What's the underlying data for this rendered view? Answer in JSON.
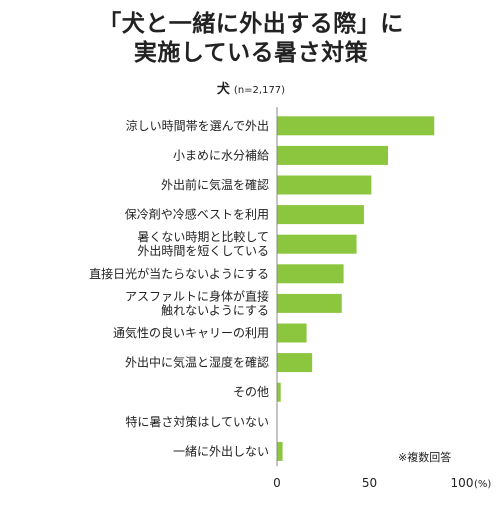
{
  "header": {
    "title_line1": "「犬と一緒に外出する際」に",
    "title_line2": "実施している暑さ対策",
    "subtitle_main": "犬",
    "subtitle_n": "(n=2,177)",
    "note": "※複数回答"
  },
  "chart_data": {
    "type": "bar",
    "orientation": "horizontal",
    "categories": [
      [
        "涼しい時間帯を選んで外出"
      ],
      [
        "小まめに水分補給"
      ],
      [
        "外出前に気温を確認"
      ],
      [
        "保冷剤や冷感ベストを利用"
      ],
      [
        "暑くない時期と比較して",
        "外出時間を短くしている"
      ],
      [
        "直接日光が当たらないようにする"
      ],
      [
        "アスファルトに身体が直接",
        "触れないようにする"
      ],
      [
        "通気性の良いキャリーの利用"
      ],
      [
        "外出中に気温と湿度を確認"
      ],
      [
        "その他"
      ],
      [
        "特に暑さ対策はしていない"
      ],
      [
        "一緒に外出しない"
      ]
    ],
    "values": [
      85,
      60,
      51,
      47,
      43,
      36,
      35,
      16,
      19,
      2,
      0,
      3
    ],
    "xlim": [
      0,
      100
    ],
    "xticks": [
      "0",
      "50",
      "100"
    ],
    "xunit": "(%)",
    "bar_color": "#8cc63f",
    "axis_color": "#888888",
    "grid": false
  }
}
